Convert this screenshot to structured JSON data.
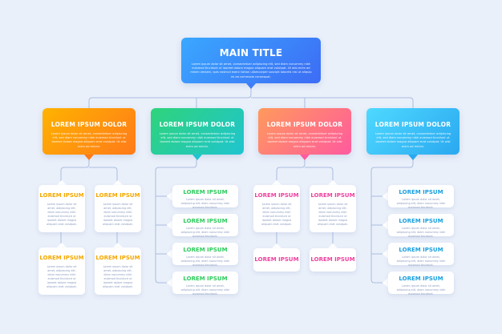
{
  "main": {
    "title": "MAIN TITLE",
    "text": "Lorem ipsum dolor sit amet, consectetuer adipiscing elit, sed diam nonummy nibh euismod tincidunt ut laoreet dolore magna aliquam erat volutpat. Ut wisi enim ad minim veniam, quis nostrud exerci tation ullamcorper suscipit lobortis nisl ut aliquip ex ea commodo consequat."
  },
  "colors": {
    "main": [
      "#3aa8ff",
      "#3d6cf5"
    ],
    "orange": [
      "#ffb300",
      "#ff7a1a"
    ],
    "green": [
      "#2fd47a",
      "#1fc4d0"
    ],
    "pink": [
      "#ff9a5c",
      "#ff5a9e"
    ],
    "blue": [
      "#4fd9ff",
      "#2aa8f0"
    ],
    "line": "#a9bde0"
  },
  "branches": [
    {
      "title": "LOREM IPSUM DOLOR",
      "text": "Lorem ipsum dolor sit amet, consectetuer adipiscing elit, sed diam nonummy nibh euismod tincidunt ut laoreet dolore magna aliquam erat volutpat. Ut wisi enim ad minim.",
      "accent": "#f5a800",
      "children": [
        {
          "title": "LOREM IPSUM",
          "text": "Lorem ipsum dolor sit amet, adipiscing elit, diam nonummy nibh euismod tincidunt ut laoreet dolore magna aliquam erat volutpat."
        },
        {
          "title": "LOREM IPSUM",
          "text": "Lorem ipsum dolor sit amet, adipiscing elit, diam nonummy nibh euismod tincidunt ut laoreet dolore magna aliquam erat volutpat."
        },
        {
          "title": "LOREM IPSUM",
          "text": "Lorem ipsum dolor sit amet, adipiscing elit, diam nonummy nibh euismod tincidunt ut laoreet dolore magna aliquam erat volutpat."
        },
        {
          "title": "LOREM IPSUM",
          "text": "Lorem ipsum dolor sit amet, adipiscing elit, diam nonummy nibh euismod tincidunt ut laoreet dolore magna aliquam erat volutpat."
        }
      ]
    },
    {
      "title": "LOREM IPSUM DOLOR",
      "text": "Lorem ipsum dolor sit amet, consectetuer adipiscing elit, sed diam nonummy nibh euismod tincidunt ut laoreet dolore magna aliquam erat volutpat. Ut wisi enim ad minim.",
      "accent": "#2ecc5c",
      "children": [
        {
          "title": "LOREM IPSUM",
          "text": "Lorem ipsum dolor sit amet, adipiscing elit, diam nonummy nibh euismod tincidunt."
        },
        {
          "title": "LOREM IPSUM",
          "text": "Lorem ipsum dolor sit amet, adipiscing elit, diam nonummy nibh euismod tincidunt."
        },
        {
          "title": "LOREM IPSUM",
          "text": "Lorem ipsum dolor sit amet, adipiscing elit, diam nonummy nibh euismod tincidunt."
        },
        {
          "title": "LOREM IPSUM",
          "text": "Lorem ipsum dolor sit amet, adipiscing elit, diam nonummy nibh euismod tincidunt."
        }
      ]
    },
    {
      "title": "LOREM IPSUM DOLOR",
      "text": "Lorem ipsum dolor sit amet, consectetuer adipiscing elit, sed diam nonummy nibh euismod tincidunt ut laoreet dolore magna aliquam erat volutpat. Ut wisi enim ad minim.",
      "accent": "#f0409e",
      "children": [
        {
          "title": "LOREM IPSUM",
          "text": "Lorem ipsum dolor sit amet, adipiscing elit, diam nonummy nibh euismod tincidunt ut laoreet dolore magna aliquam erat volutpat."
        },
        {
          "title": "LOREM IPSUM",
          "text": "Lorem ipsum dolor sit amet, adipiscing elit, diam nonummy nibh euismod tincidunt ut laoreet dolore magna aliquam erat volutpat."
        },
        {
          "title": "LOREM IPSUM"
        },
        {
          "title": "LOREM IPSUM"
        }
      ]
    },
    {
      "title": "LOREM IPSUM DOLOR",
      "text": "Lorem ipsum dolor sit amet, consectetuer adipiscing elit, sed diam nonummy nibh euismod tincidunt ut laoreet dolore magna aliquam erat volutpat. Ut wisi enim ad minim.",
      "accent": "#1aa0e0",
      "children": [
        {
          "title": "LOREM IPSUM",
          "text": "Lorem ipsum dolor sit amet, adipiscing elit, diam nonummy nibh euismod tincidunt."
        },
        {
          "title": "LOREM IPSUM",
          "text": "Lorem ipsum dolor sit amet, adipiscing elit, diam nonummy nibh euismod tincidunt."
        },
        {
          "title": "LOREM IPSUM",
          "text": "Lorem ipsum dolor sit amet, adipiscing elit, diam nonummy nibh euismod tincidunt."
        },
        {
          "title": "LOREM IPSUM",
          "text": "Lorem ipsum dolor sit amet, adipiscing elit, diam nonummy nibh euismod tincidunt."
        }
      ]
    }
  ]
}
